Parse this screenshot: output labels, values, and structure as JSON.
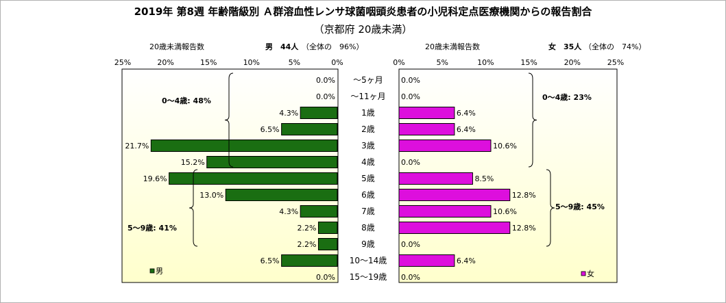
{
  "title": "2019年 第8週 年齢階級別 Ａ群溶血性レンサ球菌咽頭炎患者の小児科定点医療機関からの報告割合",
  "subtitle": "（京都府 20歳未満）",
  "left_header": {
    "label": "20歳未満報告数",
    "sex_count": "男　44人",
    "share": "（全体の　96%）"
  },
  "right_header": {
    "label": "20歳未満報告数",
    "sex_count": "女　35人",
    "share": "（全体の　74%）"
  },
  "colors": {
    "male": "#1a6e12",
    "female": "#dd0fdd",
    "bar_stroke": "#000000",
    "plot_bg_top": "#ffffff",
    "plot_bg_bottom": "#ffffcc"
  },
  "chart_data": {
    "type": "bar",
    "orientation": "horizontal-population-pyramid",
    "categories": [
      "～5ヶ月",
      "～11ヶ月",
      "1歳",
      "2歳",
      "3歳",
      "4歳",
      "5歳",
      "6歳",
      "7歳",
      "8歳",
      "9歳",
      "10～14歳",
      "15～19歳"
    ],
    "series": [
      {
        "name": "男",
        "values": [
          0.0,
          0.0,
          4.3,
          6.5,
          21.7,
          15.2,
          19.6,
          13.0,
          4.3,
          2.2,
          2.2,
          6.5,
          0.0
        ],
        "labels": [
          "0.0%",
          "0.0%",
          "4.3%",
          "6.5%",
          "21.7%",
          "15.2%",
          "19.6%",
          "13.0%",
          "4.3%",
          "2.2%",
          "2.2%",
          "6.5%",
          "0.0%"
        ]
      },
      {
        "name": "女",
        "values": [
          0.0,
          0.0,
          6.4,
          6.4,
          10.6,
          0.0,
          8.5,
          12.8,
          10.6,
          12.8,
          0.0,
          6.4,
          0.0
        ],
        "labels": [
          "0.0%",
          "0.0%",
          "6.4%",
          "6.4%",
          "10.6%",
          "0.0%",
          "8.5%",
          "12.8%",
          "10.6%",
          "12.8%",
          "0.0%",
          "6.4%",
          "0.0%"
        ]
      }
    ],
    "xlim": [
      0,
      25
    ],
    "ticks": [
      0,
      5,
      10,
      15,
      20,
      25
    ],
    "left_tick_labels": [
      "25%",
      "20%",
      "15%",
      "10%",
      "5%",
      "0%"
    ],
    "right_tick_labels": [
      "0%",
      "5%",
      "10%",
      "15%",
      "20%",
      "25%"
    ],
    "annotations": {
      "male_0_4": "0～4歳: 48%",
      "male_5_9": "5～9歳: 41%",
      "female_0_4": "0～4歳: 23%",
      "female_5_9": "5～9歳: 45%"
    },
    "legend": [
      "男",
      "女"
    ],
    "legend_placement": "bottom-left (male), bottom-right (female)"
  }
}
